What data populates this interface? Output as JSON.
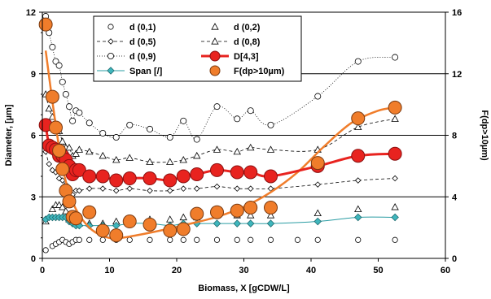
{
  "chart_data": {
    "type": "scatter",
    "xlabel": "Biomass, X [gCDW/L]",
    "ylabel": "Diameter, [µm]",
    "y2label": "F(dp>10µm)",
    "xlim": [
      0,
      60
    ],
    "ylim": [
      0,
      12
    ],
    "y2lim": [
      0,
      16
    ],
    "x_ticks": [
      "0",
      "10",
      "20",
      "30",
      "40",
      "50",
      "60"
    ],
    "y_ticks": [
      "0",
      "3",
      "6",
      "9",
      "12"
    ],
    "y2_ticks": [
      "0",
      "4",
      "8",
      "12",
      "16"
    ],
    "grid": "horizontal lines at y = 3, 6, 9",
    "legend_position": "top-center",
    "series": [
      {
        "name": "d (0,1)",
        "axis": "left",
        "style": "open-circle",
        "color": "#000000",
        "x": [
          0.5,
          1.5,
          2,
          2.5,
          3,
          3.5,
          4,
          4.5,
          5,
          5.5,
          7,
          9,
          11,
          13,
          16,
          19,
          21,
          23,
          26,
          29,
          31,
          34,
          38,
          41,
          47,
          52.5
        ],
        "y": [
          0.4,
          0.6,
          0.7,
          0.8,
          0.9,
          0.8,
          0.7,
          0.8,
          0.9,
          0.9,
          0.9,
          0.9,
          0.9,
          0.9,
          0.9,
          0.9,
          0.9,
          0.9,
          0.9,
          0.9,
          0.9,
          0.9,
          0.9,
          0.9,
          0.9,
          0.9
        ]
      },
      {
        "name": "d (0,2)",
        "axis": "left",
        "style": "open-triangle",
        "color": "#000000",
        "x": [
          0.5,
          1.5,
          2,
          2.5,
          3,
          3.5,
          4,
          4.5,
          5,
          5.5,
          7,
          9,
          11,
          13,
          16,
          19,
          21,
          23,
          26,
          29,
          31,
          34,
          41,
          47,
          52.5
        ],
        "y": [
          1.8,
          2.4,
          2.6,
          2.6,
          2.5,
          2.3,
          1.9,
          1.8,
          1.7,
          1.7,
          1.7,
          1.7,
          1.8,
          1.8,
          1.9,
          1.9,
          2.0,
          2.0,
          2.1,
          2.1,
          2.1,
          2.1,
          2.2,
          2.4,
          2.5
        ]
      },
      {
        "name": "d (0,5)",
        "axis": "left",
        "style": "dashed-diamond",
        "color": "#000000",
        "x": [
          0.5,
          1,
          1.5,
          2,
          2.5,
          3,
          3.5,
          4,
          4.5,
          5,
          5.5,
          7,
          9,
          11,
          13,
          16,
          19,
          21,
          23,
          26,
          29,
          31,
          34,
          41,
          47,
          52.5
        ],
        "y": [
          5.2,
          4.6,
          4.3,
          4.2,
          3.9,
          3.8,
          3.6,
          3.3,
          3.1,
          3.3,
          3.3,
          3.4,
          3.4,
          3.3,
          3.4,
          3.3,
          3.3,
          3.4,
          3.4,
          3.5,
          3.4,
          3.4,
          3.4,
          3.6,
          3.8,
          3.9
        ]
      },
      {
        "name": "d (0,8)",
        "axis": "left",
        "style": "dashed-triangle",
        "color": "#000000",
        "x": [
          0.5,
          1,
          1.5,
          2,
          2.5,
          3,
          3.5,
          4,
          4.5,
          5,
          5.5,
          7,
          9,
          11,
          13,
          16,
          19,
          21,
          23,
          26,
          29,
          31,
          34,
          41,
          47,
          52.5
        ],
        "y": [
          8.0,
          7.3,
          6.9,
          6.5,
          6.2,
          5.7,
          5.4,
          5.4,
          5.0,
          5.1,
          5.3,
          5.2,
          5.0,
          4.8,
          4.9,
          4.7,
          4.7,
          4.8,
          5.0,
          5.3,
          5.2,
          5.4,
          5.3,
          5.3,
          6.4,
          6.8
        ]
      },
      {
        "name": "d (0,9)",
        "axis": "left",
        "style": "dotted-open-circle",
        "color": "#000000",
        "x": [
          0.5,
          1,
          1.5,
          2,
          2.5,
          3,
          3.5,
          4,
          4.5,
          5,
          5.5,
          7,
          9,
          11,
          13,
          16,
          19,
          21,
          23,
          26,
          29,
          31,
          34,
          41,
          47,
          52.5
        ],
        "y": [
          11.8,
          11.0,
          10.3,
          9.6,
          9.4,
          8.6,
          8.0,
          7.4,
          6.7,
          7.2,
          7.1,
          6.6,
          6.1,
          5.9,
          6.5,
          6.3,
          5.9,
          6.7,
          5.8,
          7.4,
          6.8,
          7.2,
          6.5,
          7.9,
          9.6,
          9.8
        ]
      },
      {
        "name": "D[4,3]",
        "axis": "left",
        "style": "bold-red-line-circle",
        "color": "#e8231f",
        "x": [
          0.5,
          1,
          1.5,
          2,
          2.5,
          3,
          3.5,
          4,
          4.5,
          5,
          5.5,
          7,
          9,
          11,
          13,
          16,
          19,
          21,
          23,
          26,
          29,
          31,
          34,
          41,
          47,
          52.5
        ],
        "y": [
          6.5,
          5.5,
          5.4,
          5.3,
          5.0,
          5.0,
          4.8,
          4.5,
          4.1,
          4.3,
          4.3,
          4.0,
          4.0,
          3.8,
          3.9,
          3.9,
          3.8,
          4.0,
          4.1,
          4.3,
          4.2,
          4.2,
          4.0,
          4.5,
          5.0,
          5.1
        ]
      },
      {
        "name": "Span [/]",
        "axis": "left",
        "style": "teal-diamond-line",
        "color": "#2a9ca3",
        "x": [
          0.5,
          1,
          1.5,
          2,
          2.5,
          3,
          3.5,
          4,
          4.5,
          5,
          5.5,
          7,
          9,
          11,
          13,
          16,
          19,
          21,
          23,
          26,
          29,
          31,
          34,
          41,
          47,
          52.5
        ],
        "y": [
          1.9,
          2.0,
          2.0,
          2.0,
          2.0,
          2.0,
          2.0,
          1.8,
          1.7,
          1.6,
          1.6,
          1.6,
          1.6,
          1.6,
          1.7,
          1.7,
          1.6,
          1.7,
          1.7,
          1.7,
          1.7,
          1.7,
          1.7,
          1.8,
          2.0,
          2.0
        ]
      },
      {
        "name": "F(dp>10µm)",
        "axis": "right",
        "style": "orange-circle",
        "color": "#f07d2b",
        "x": [
          0.5,
          1.5,
          2,
          2.5,
          3,
          3.5,
          4,
          4.5,
          5,
          7,
          9,
          11,
          13,
          16,
          19,
          21,
          23,
          26,
          29,
          31,
          34,
          41,
          47,
          52.5
        ],
        "y": [
          15.2,
          10.5,
          8.5,
          7.0,
          5.8,
          4.4,
          3.7,
          2.7,
          2.6,
          3.0,
          1.8,
          1.5,
          2.4,
          2.2,
          1.8,
          1.9,
          2.9,
          3.0,
          3.1,
          3.3,
          3.3,
          6.2,
          9.1,
          9.8
        ]
      },
      {
        "name": "F(dp>10µm) fit",
        "axis": "right",
        "style": "orange-line",
        "color": "#f07d2b",
        "in_legend": false,
        "x": [
          0.5,
          1.5,
          2.5,
          3.5,
          5,
          7,
          9,
          11,
          14,
          18,
          22,
          26,
          30,
          34,
          38,
          42,
          46,
          50,
          52.5
        ],
        "y": [
          13.5,
          10.2,
          7.2,
          5.0,
          3.2,
          2.0,
          1.45,
          1.3,
          1.5,
          1.85,
          2.25,
          2.7,
          3.35,
          4.3,
          5.6,
          7.3,
          8.8,
          9.6,
          9.8
        ]
      }
    ]
  }
}
